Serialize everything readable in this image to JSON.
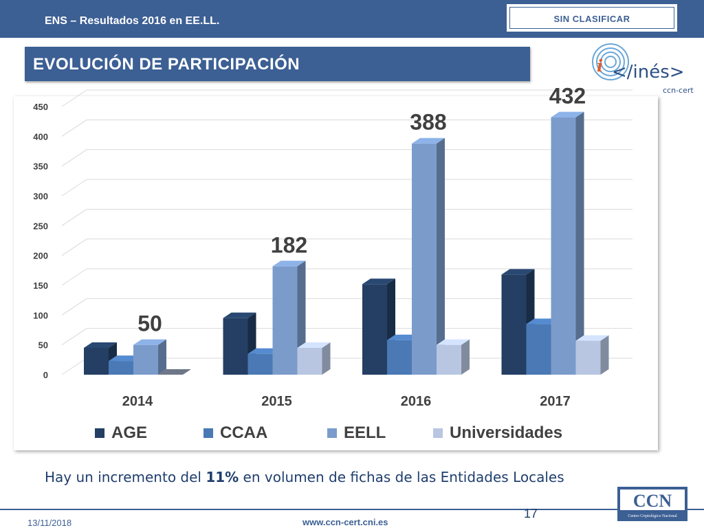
{
  "header": {
    "title": "ENS – Resultados 2016 en EE.LL.",
    "classification": "SIN CLASIFICAR"
  },
  "section": {
    "title": "EVOLUCIÓN DE PARTICIPACIÓN"
  },
  "logo": {
    "text": "</inés>",
    "subtext": "ccn-cert"
  },
  "chart_data": {
    "type": "bar",
    "categories": [
      "2014",
      "2015",
      "2016",
      "2017"
    ],
    "series": [
      {
        "name": "AGE",
        "values": [
          45,
          95,
          152,
          168
        ],
        "color": "#243f63"
      },
      {
        "name": "CCAA",
        "values": [
          23,
          35,
          58,
          85
        ],
        "color": "#4a79b5"
      },
      {
        "name": "EELL",
        "values": [
          50,
          182,
          388,
          432
        ],
        "color": "#7b9ccb"
      },
      {
        "name": "Universidades",
        "values": [
          0,
          45,
          50,
          57
        ],
        "color": "#b8c6e2"
      }
    ],
    "data_labels": [
      {
        "series": "EELL",
        "category": "2014",
        "text": "50"
      },
      {
        "series": "EELL",
        "category": "2015",
        "text": "182"
      },
      {
        "series": "EELL",
        "category": "2016",
        "text": "388"
      },
      {
        "series": "EELL",
        "category": "2017",
        "text": "432"
      }
    ],
    "yticks": [
      "0",
      "50",
      "100",
      "150",
      "200",
      "250",
      "300",
      "350",
      "400",
      "450"
    ],
    "ylim": [
      0,
      450
    ],
    "grid": true,
    "legend_position": "bottom",
    "three_d": true
  },
  "caption": {
    "before": "Hay un incremento del ",
    "bold": "11%",
    "after": " en volumen de fichas de las Entidades Locales"
  },
  "footer": {
    "date": "13/11/2018",
    "url": "www.ccn-cert.cni.es",
    "page_number": "17",
    "ccn_logo_text": "CCN",
    "ccn_logo_subtext": "Centro Criptológico Nacional"
  }
}
